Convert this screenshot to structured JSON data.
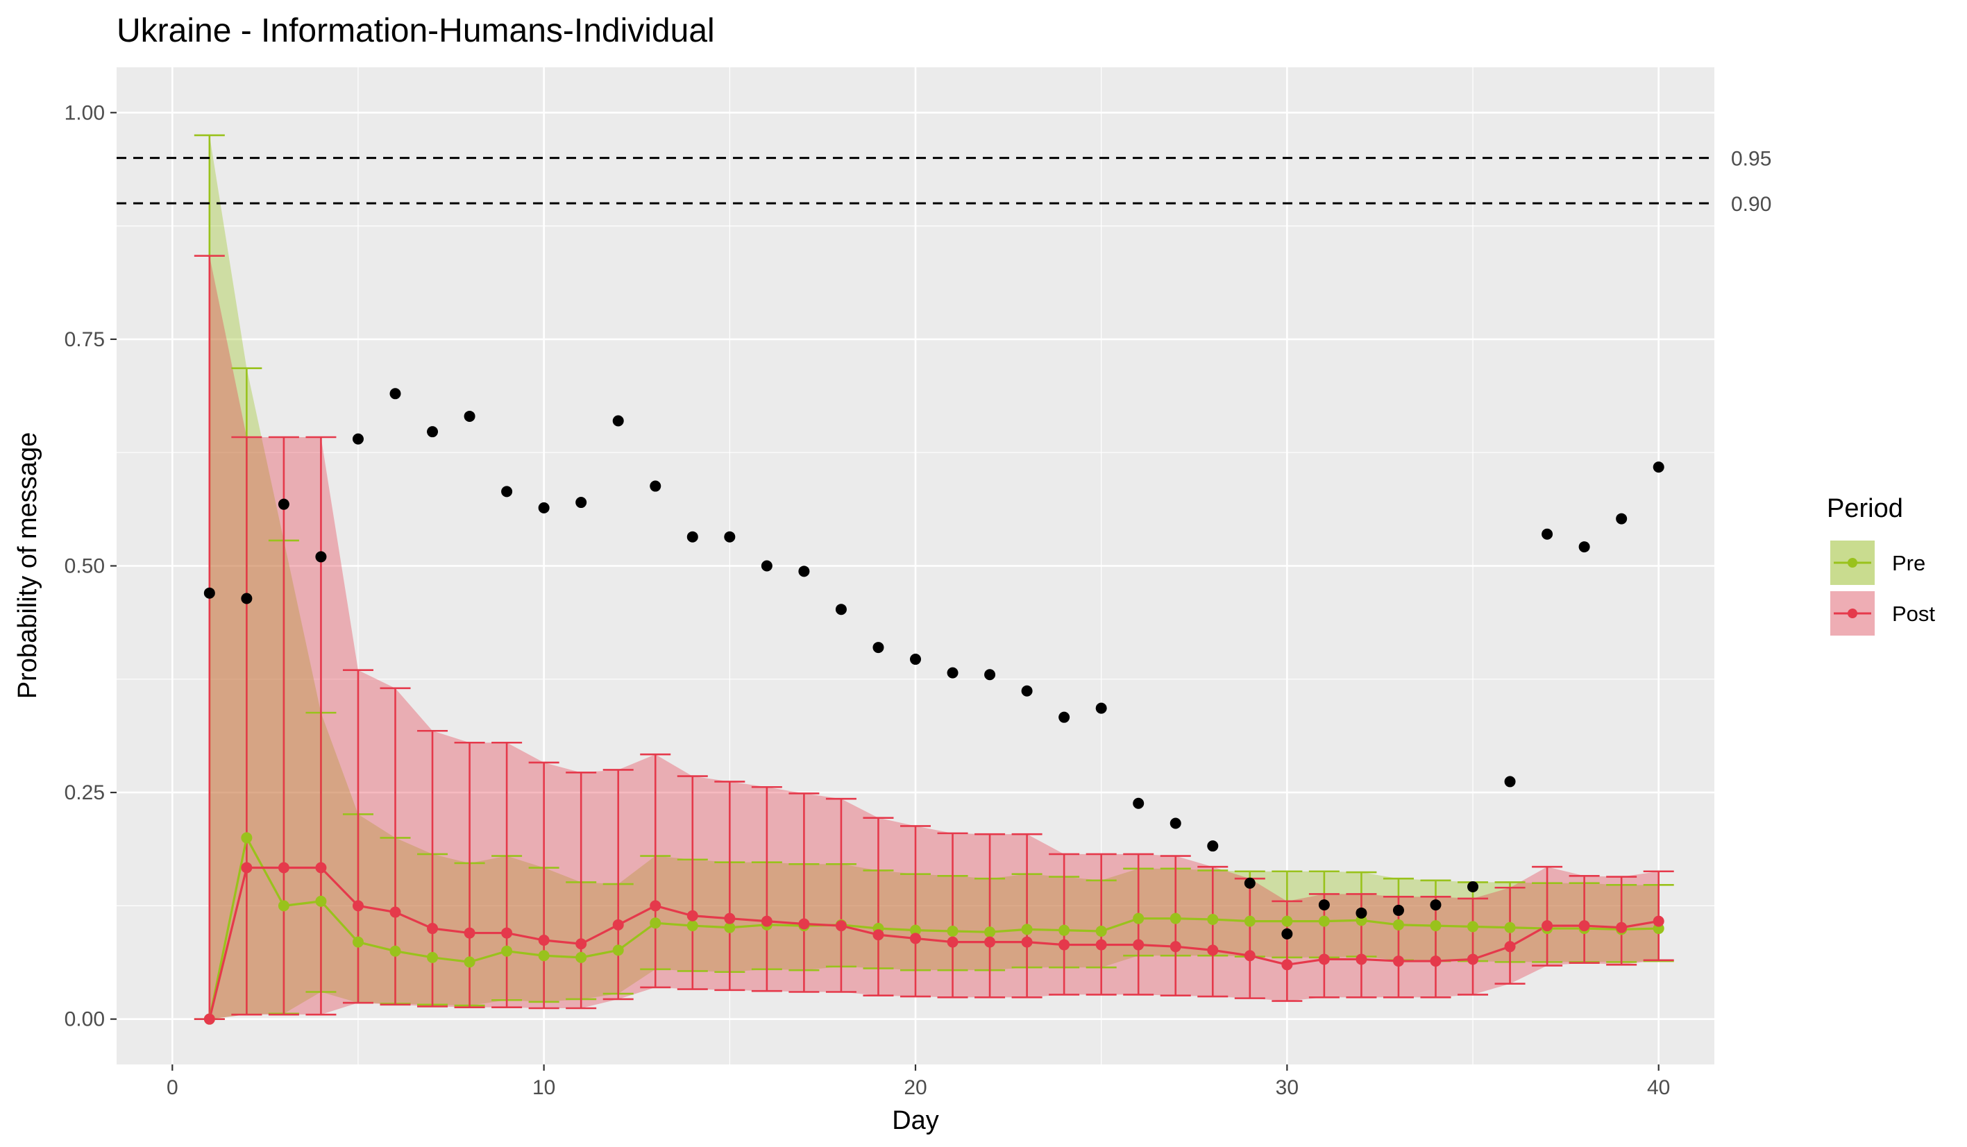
{
  "chart_data": {
    "type": "line",
    "title": "Ukraine - Information-Humans-Individual",
    "xlabel": "Day",
    "ylabel": "Probability of message",
    "xlim": [
      -1.5,
      41.5
    ],
    "ylim": [
      -0.05,
      1.05
    ],
    "x_ticks": [
      0,
      10,
      20,
      30,
      40
    ],
    "x_tick_labels": [
      "0",
      "10",
      "20",
      "30",
      "40"
    ],
    "y_ticks": [
      0,
      0.25,
      0.5,
      0.75,
      1.0
    ],
    "y_tick_labels": [
      "0.00",
      "0.25",
      "0.50",
      "0.75",
      "1.00"
    ],
    "grid": true,
    "legend": {
      "title": "Period",
      "position": "right"
    },
    "reference_lines": [
      {
        "value": 0.95,
        "label": "0.95"
      },
      {
        "value": 0.9,
        "label": "0.90"
      }
    ],
    "observed": {
      "x": [
        1,
        2,
        3,
        4,
        5,
        6,
        7,
        8,
        9,
        10,
        11,
        12,
        13,
        14,
        15,
        16,
        17,
        18,
        19,
        20,
        21,
        22,
        23,
        24,
        25,
        26,
        27,
        28,
        29,
        30,
        31,
        32,
        33,
        34,
        35,
        36,
        37,
        38,
        39,
        40
      ],
      "y": [
        0.47,
        0.464,
        0.568,
        0.51,
        0.64,
        0.69,
        0.648,
        0.665,
        0.582,
        0.564,
        0.57,
        0.66,
        0.588,
        0.532,
        0.532,
        0.5,
        0.494,
        0.452,
        0.41,
        0.397,
        0.382,
        0.38,
        0.362,
        0.333,
        0.343,
        0.238,
        0.216,
        0.191,
        0.15,
        0.094,
        0.126,
        0.117,
        0.12,
        0.126,
        0.146,
        0.262,
        0.535,
        0.521,
        0.552,
        0.609
      ]
    },
    "series": [
      {
        "name": "Pre",
        "color": "#99c21c",
        "x": [
          1,
          2,
          3,
          4,
          5,
          6,
          7,
          8,
          9,
          10,
          11,
          12,
          13,
          14,
          15,
          16,
          17,
          18,
          19,
          20,
          21,
          22,
          23,
          24,
          25,
          26,
          27,
          28,
          29,
          30,
          31,
          32,
          33,
          34,
          35,
          36,
          37,
          38,
          39,
          40
        ],
        "y": [
          0.0,
          0.2,
          0.125,
          0.13,
          0.085,
          0.075,
          0.068,
          0.063,
          0.075,
          0.07,
          0.068,
          0.076,
          0.106,
          0.103,
          0.101,
          0.104,
          0.103,
          0.104,
          0.1,
          0.098,
          0.097,
          0.096,
          0.099,
          0.098,
          0.097,
          0.111,
          0.111,
          0.11,
          0.108,
          0.108,
          0.108,
          0.109,
          0.104,
          0.103,
          0.102,
          0.101,
          0.1,
          0.1,
          0.099,
          0.1
        ],
        "lower": [
          0.0,
          0.005,
          0.006,
          0.03,
          0.018,
          0.017,
          0.016,
          0.015,
          0.021,
          0.019,
          0.022,
          0.028,
          0.055,
          0.053,
          0.052,
          0.055,
          0.054,
          0.058,
          0.056,
          0.054,
          0.054,
          0.054,
          0.057,
          0.057,
          0.057,
          0.07,
          0.07,
          0.07,
          0.069,
          0.068,
          0.068,
          0.069,
          0.065,
          0.064,
          0.064,
          0.063,
          0.063,
          0.063,
          0.063,
          0.064
        ],
        "upper": [
          0.975,
          0.718,
          0.528,
          0.338,
          0.226,
          0.2,
          0.182,
          0.172,
          0.18,
          0.167,
          0.151,
          0.149,
          0.18,
          0.176,
          0.173,
          0.173,
          0.171,
          0.171,
          0.164,
          0.16,
          0.158,
          0.155,
          0.16,
          0.157,
          0.153,
          0.166,
          0.166,
          0.164,
          0.163,
          0.163,
          0.163,
          0.162,
          0.155,
          0.153,
          0.151,
          0.151,
          0.15,
          0.15,
          0.148,
          0.148
        ]
      },
      {
        "name": "Post",
        "color": "#e5394b",
        "x": [
          1,
          2,
          3,
          4,
          5,
          6,
          7,
          8,
          9,
          10,
          11,
          12,
          13,
          14,
          15,
          16,
          17,
          18,
          19,
          20,
          21,
          22,
          23,
          24,
          25,
          26,
          27,
          28,
          29,
          30,
          31,
          32,
          33,
          34,
          35,
          36,
          37,
          38,
          39,
          40
        ],
        "y": [
          0.0,
          0.167,
          0.167,
          0.167,
          0.125,
          0.118,
          0.1,
          0.095,
          0.095,
          0.087,
          0.083,
          0.104,
          0.125,
          0.114,
          0.111,
          0.108,
          0.105,
          0.103,
          0.093,
          0.089,
          0.085,
          0.085,
          0.085,
          0.082,
          0.082,
          0.082,
          0.08,
          0.076,
          0.07,
          0.06,
          0.066,
          0.066,
          0.064,
          0.064,
          0.066,
          0.08,
          0.103,
          0.103,
          0.101,
          0.108
        ],
        "lower": [
          0.0,
          0.005,
          0.005,
          0.005,
          0.018,
          0.016,
          0.014,
          0.013,
          0.013,
          0.012,
          0.012,
          0.022,
          0.035,
          0.033,
          0.032,
          0.031,
          0.03,
          0.03,
          0.026,
          0.025,
          0.024,
          0.024,
          0.024,
          0.027,
          0.027,
          0.027,
          0.026,
          0.025,
          0.023,
          0.02,
          0.024,
          0.024,
          0.024,
          0.024,
          0.027,
          0.039,
          0.059,
          0.062,
          0.06,
          0.065
        ],
        "upper": [
          0.842,
          0.642,
          0.642,
          0.642,
          0.385,
          0.365,
          0.318,
          0.305,
          0.305,
          0.283,
          0.272,
          0.275,
          0.292,
          0.268,
          0.262,
          0.256,
          0.249,
          0.243,
          0.222,
          0.213,
          0.205,
          0.204,
          0.204,
          0.182,
          0.182,
          0.182,
          0.18,
          0.168,
          0.155,
          0.13,
          0.138,
          0.138,
          0.135,
          0.135,
          0.133,
          0.145,
          0.168,
          0.158,
          0.157,
          0.163
        ]
      }
    ]
  }
}
